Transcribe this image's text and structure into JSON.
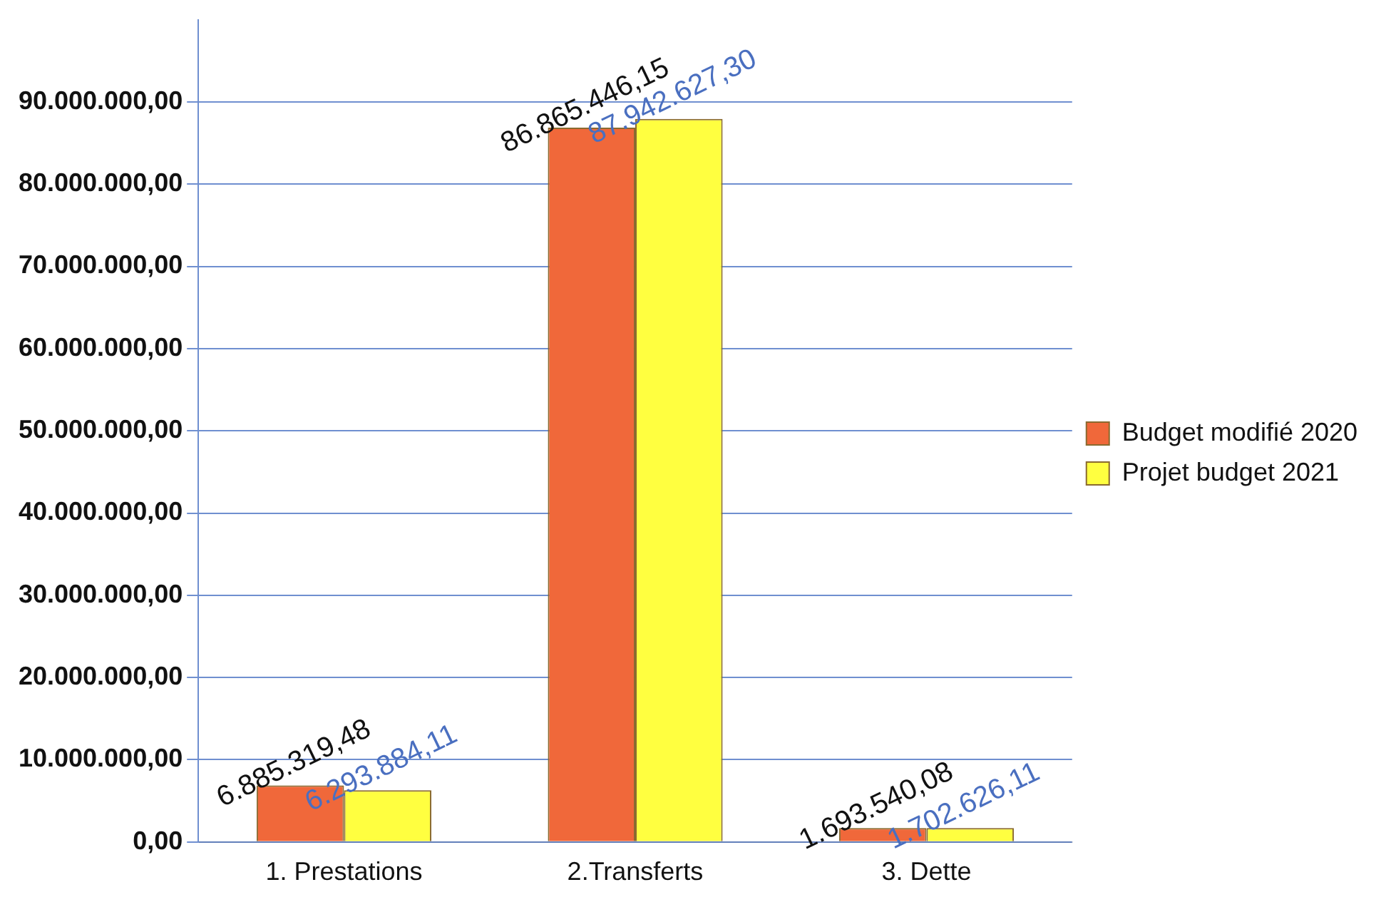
{
  "chart_data": {
    "type": "bar",
    "categories": [
      "1. Prestations",
      "2.Transferts",
      "3. Dette"
    ],
    "series": [
      {
        "name": "Budget modifié 2020",
        "color": "#f0683a",
        "values": [
          6885319.48,
          86865446.15,
          1693540.08
        ],
        "value_labels": [
          "6.885.319,48",
          "86.865.446,15",
          "1.693.540,08"
        ]
      },
      {
        "name": "Projet budget 2021",
        "color": "#ffff40",
        "values": [
          6293884.11,
          87942627.3,
          1702626.11
        ],
        "value_labels": [
          "6.293.884,11",
          "87.942.627,30",
          "1.702.626,11"
        ]
      }
    ],
    "ylim": [
      0,
      100000000
    ],
    "yticks": [
      {
        "value": 0,
        "label": "0,00"
      },
      {
        "value": 10000000,
        "label": "10.000.000,00"
      },
      {
        "value": 20000000,
        "label": "20.000.000,00"
      },
      {
        "value": 30000000,
        "label": "30.000.000,00"
      },
      {
        "value": 40000000,
        "label": "40.000.000,00"
      },
      {
        "value": 50000000,
        "label": "50.000.000,00"
      },
      {
        "value": 60000000,
        "label": "60.000.000,00"
      },
      {
        "value": 70000000,
        "label": "70.000.000,00"
      },
      {
        "value": 80000000,
        "label": "80.000.000,00"
      },
      {
        "value": 90000000,
        "label": "90.000.000,00"
      }
    ],
    "grid": "y",
    "legend": "right"
  }
}
